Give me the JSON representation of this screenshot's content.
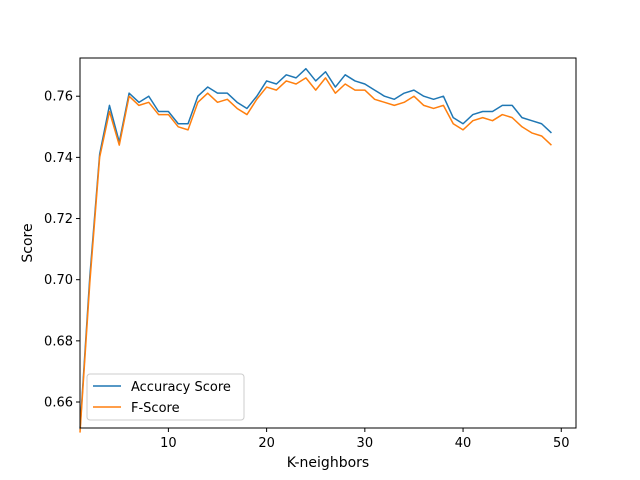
{
  "chart_data": {
    "type": "line",
    "title": "",
    "xlabel": "K-neighbors",
    "ylabel": "Score",
    "xlim": [
      1,
      51.5
    ],
    "ylim": [
      0.6515,
      0.7725
    ],
    "xticks": [
      10,
      20,
      30,
      40,
      50
    ],
    "yticks": [
      0.66,
      0.68,
      0.7,
      0.72,
      0.74,
      0.76
    ],
    "ytick_labels": [
      "0.66",
      "0.68",
      "0.70",
      "0.72",
      "0.74",
      "0.76"
    ],
    "grid": false,
    "legend_position": "lower-left",
    "x": [
      1,
      2,
      3,
      4,
      5,
      6,
      7,
      8,
      9,
      10,
      11,
      12,
      13,
      14,
      15,
      16,
      17,
      18,
      19,
      20,
      21,
      22,
      23,
      24,
      25,
      26,
      27,
      28,
      29,
      30,
      31,
      32,
      33,
      34,
      35,
      36,
      37,
      38,
      39,
      40,
      41,
      42,
      43,
      44,
      45,
      46,
      47,
      48,
      49
    ],
    "series": [
      {
        "name": "Accuracy Score",
        "color": "#1f77b4",
        "values": [
          0.651,
          0.701,
          0.741,
          0.757,
          0.745,
          0.761,
          0.758,
          0.76,
          0.755,
          0.755,
          0.751,
          0.751,
          0.76,
          0.763,
          0.761,
          0.761,
          0.758,
          0.756,
          0.76,
          0.765,
          0.764,
          0.767,
          0.766,
          0.769,
          0.765,
          0.768,
          0.763,
          0.767,
          0.765,
          0.764,
          0.762,
          0.76,
          0.759,
          0.761,
          0.762,
          0.76,
          0.759,
          0.76,
          0.753,
          0.751,
          0.754,
          0.755,
          0.755,
          0.757,
          0.757,
          0.753,
          0.752,
          0.751,
          0.748
        ]
      },
      {
        "name": "F-Score",
        "color": "#ff7f0e",
        "values": [
          0.65,
          0.699,
          0.74,
          0.755,
          0.744,
          0.76,
          0.757,
          0.758,
          0.754,
          0.754,
          0.75,
          0.749,
          0.758,
          0.761,
          0.758,
          0.759,
          0.756,
          0.754,
          0.759,
          0.763,
          0.762,
          0.765,
          0.764,
          0.766,
          0.762,
          0.766,
          0.761,
          0.764,
          0.762,
          0.762,
          0.759,
          0.758,
          0.757,
          0.758,
          0.76,
          0.757,
          0.756,
          0.757,
          0.751,
          0.749,
          0.752,
          0.753,
          0.752,
          0.754,
          0.753,
          0.75,
          0.748,
          0.747,
          0.744
        ]
      }
    ]
  }
}
